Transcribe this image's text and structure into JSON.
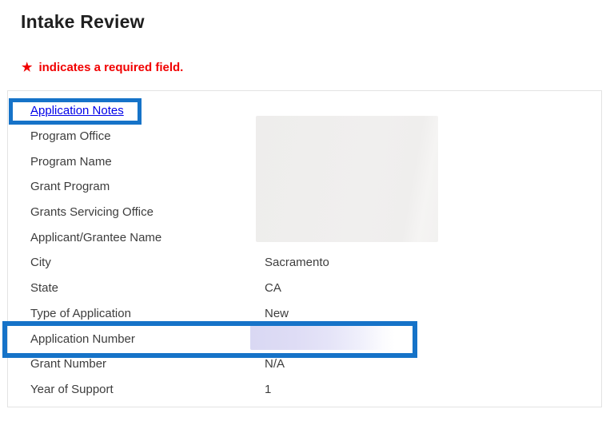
{
  "header": {
    "title": "Intake Review",
    "required_star": "★",
    "required_note": "indicates a required field."
  },
  "table": {
    "application_notes_link": "Application Notes",
    "rows": [
      {
        "label": "Program Office",
        "value": ""
      },
      {
        "label": "Program Name",
        "value": ""
      },
      {
        "label": "Grant Program",
        "value": ""
      },
      {
        "label": "Grants Servicing Office",
        "value": ""
      },
      {
        "label": "Applicant/Grantee Name",
        "value": ""
      },
      {
        "label": "City",
        "value": "Sacramento"
      },
      {
        "label": "State",
        "value": "CA"
      },
      {
        "label": "Type of Application",
        "value": "New"
      },
      {
        "label": "Application Number",
        "value": ""
      },
      {
        "label": "Grant Number",
        "value": "N/A"
      },
      {
        "label": "Year of Support",
        "value": "1"
      }
    ],
    "redactions": [
      {
        "name": "upper-values-block",
        "note": "blurred gray block covering values of first five rows"
      },
      {
        "name": "application-number-value",
        "note": "blurred lavender block covering application number value"
      }
    ]
  },
  "annotations": [
    {
      "name": "application-notes-highlight",
      "color": "#1673c8"
    },
    {
      "name": "application-number-highlight",
      "color": "#1673c8"
    }
  ],
  "colors": {
    "annotation_blue": "#1673c8",
    "link_blue": "#0000e8",
    "required_red": "#f10000",
    "title_text": "#1f1f1f",
    "body_text": "#3d3d3d",
    "panel_border": "#e3e3e3",
    "redaction_gray": "#efeeed",
    "redaction_lavender": "#dcdbf4"
  }
}
